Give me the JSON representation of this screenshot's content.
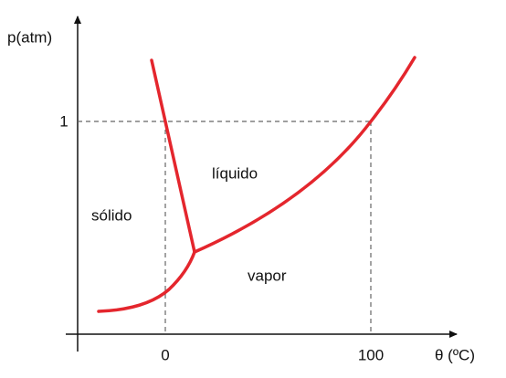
{
  "axes": {
    "y_label": "p(atm)",
    "x_label": "θ (ºC)",
    "y_tick": "1",
    "x_ticks": [
      "0",
      "100"
    ]
  },
  "regions": {
    "solid": "sólido",
    "liquid": "líquido",
    "vapor": "vapor"
  }
}
